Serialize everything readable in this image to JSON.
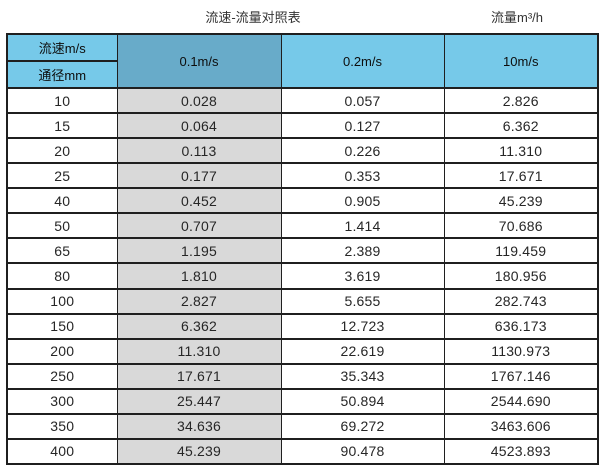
{
  "page": {
    "title_left": "流速-流量对照表",
    "title_right": "流量m³/h"
  },
  "table": {
    "header": {
      "velocity_label": "流速m/s",
      "diameter_label": "通径mm",
      "col_01": "0.1m/s",
      "col_02": "0.2m/s",
      "col_10": "10m/s"
    },
    "rows": [
      [
        "10",
        "0.028",
        "0.057",
        "2.826"
      ],
      [
        "15",
        "0.064",
        "0.127",
        "6.362"
      ],
      [
        "20",
        "0.113",
        "0.226",
        "11.310"
      ],
      [
        "25",
        "0.177",
        "0.353",
        "17.671"
      ],
      [
        "40",
        "0.452",
        "0.905",
        "45.239"
      ],
      [
        "50",
        "0.707",
        "1.414",
        "70.686"
      ],
      [
        "65",
        "1.195",
        "2.389",
        "119.459"
      ],
      [
        "80",
        "1.810",
        "3.619",
        "180.956"
      ],
      [
        "100",
        "2.827",
        "5.655",
        "282.743"
      ],
      [
        "150",
        "6.362",
        "12.723",
        "636.173"
      ],
      [
        "200",
        "11.310",
        "22.619",
        "1130.973"
      ],
      [
        "250",
        "17.671",
        "35.343",
        "1767.146"
      ],
      [
        "300",
        "25.447",
        "50.894",
        "2544.690"
      ],
      [
        "350",
        "34.636",
        "69.272",
        "3463.606"
      ],
      [
        "400",
        "45.239",
        "90.478",
        "4523.893"
      ]
    ]
  },
  "colors": {
    "header_blue": "#76C9E9",
    "header_dark_blue": "#68ABC9",
    "column_gray": "#D9D9D9",
    "border": "#1F1F1F"
  },
  "chart_data": {
    "type": "table",
    "title": "流速-流量对照表",
    "unit": "流量m³/h",
    "columns": [
      "通径mm",
      "0.1m/s",
      "0.2m/s",
      "10m/s"
    ],
    "rows": [
      [
        10,
        0.028,
        0.057,
        2.826
      ],
      [
        15,
        0.064,
        0.127,
        6.362
      ],
      [
        20,
        0.113,
        0.226,
        11.31
      ],
      [
        25,
        0.177,
        0.353,
        17.671
      ],
      [
        40,
        0.452,
        0.905,
        45.239
      ],
      [
        50,
        0.707,
        1.414,
        70.686
      ],
      [
        65,
        1.195,
        2.389,
        119.459
      ],
      [
        80,
        1.81,
        3.619,
        180.956
      ],
      [
        100,
        2.827,
        5.655,
        282.743
      ],
      [
        150,
        6.362,
        12.723,
        636.173
      ],
      [
        200,
        11.31,
        22.619,
        1130.973
      ],
      [
        250,
        17.671,
        35.343,
        1767.146
      ],
      [
        300,
        25.447,
        50.894,
        2544.69
      ],
      [
        350,
        34.636,
        69.272,
        3463.606
      ],
      [
        400,
        45.239,
        90.478,
        4523.893
      ]
    ]
  }
}
